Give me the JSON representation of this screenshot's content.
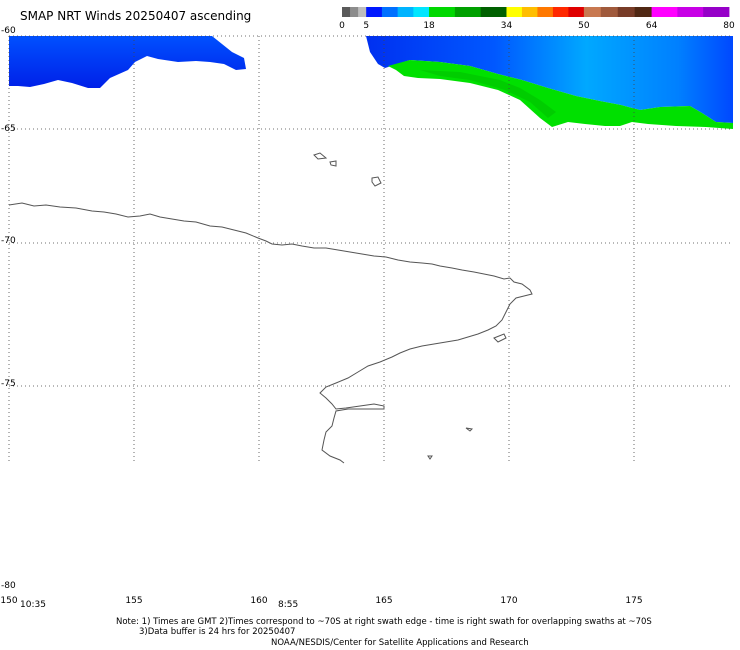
{
  "title": "SMAP NRT Winds 20250407 ascending",
  "colorbar": {
    "ticks": [
      {
        "label": "0",
        "value": 0
      },
      {
        "label": "5",
        "value": 5
      },
      {
        "label": "18",
        "value": 18
      },
      {
        "label": "34",
        "value": 34
      },
      {
        "label": "50",
        "value": 50
      },
      {
        "label": "64",
        "value": 64
      },
      {
        "label": "80",
        "value": 80
      }
    ],
    "segments": [
      {
        "from": 0,
        "to": 5,
        "colors": [
          "#5a5a5a",
          "#8c8c8c",
          "#bdbdbd"
        ]
      },
      {
        "from": 5,
        "to": 18,
        "colors": [
          "#0018ff",
          "#0070ff",
          "#00b4ff",
          "#00e6ff"
        ]
      },
      {
        "from": 18,
        "to": 34,
        "colors": [
          "#00d800",
          "#00a000",
          "#006000"
        ]
      },
      {
        "from": 34,
        "to": 50,
        "colors": [
          "#ffff00",
          "#ffbe00",
          "#ff7800",
          "#ff2800",
          "#e00000"
        ]
      },
      {
        "from": 50,
        "to": 64,
        "colors": [
          "#c87850",
          "#a05a3c",
          "#783c28",
          "#502814"
        ]
      },
      {
        "from": 64,
        "to": 80,
        "colors": [
          "#ff00ff",
          "#c800e6",
          "#9600c8"
        ]
      }
    ]
  },
  "map": {
    "lat_range": [
      -80,
      -60
    ],
    "lon_range": [
      150,
      180
    ],
    "lat_labels": [
      "-60",
      "-65",
      "-70",
      "-75",
      "-80"
    ],
    "lon_labels": [
      "150",
      "155",
      "160",
      "165",
      "170",
      "175"
    ],
    "swath_time_labels": [
      {
        "label": "10:35",
        "lon": 150.6
      },
      {
        "label": "8:55",
        "lon": 161.2
      }
    ]
  },
  "notes": {
    "line1": "Note: 1) Times are GMT 2)Times correspond to ~70S at right swath edge - time is right swath for overlapping swaths at ~70S",
    "line2": "3)Data buffer is 24 hrs for 20250407",
    "line3": "NOAA/NESDIS/Center for Satellite Applications and Research"
  }
}
